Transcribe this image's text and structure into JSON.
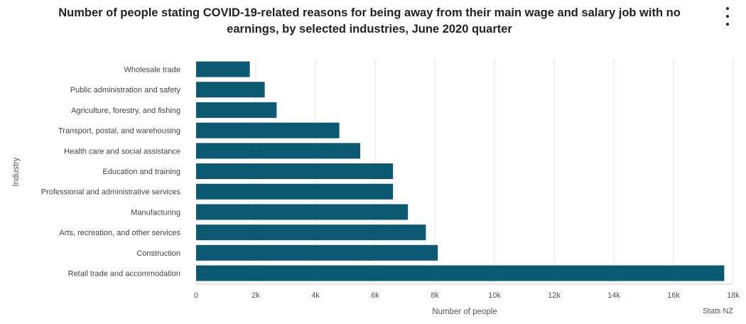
{
  "chart_data": {
    "type": "bar",
    "orientation": "horizontal",
    "title_lines": [
      "Number of people stating COVID-19-related reasons for being away from their main wage and salary job with no",
      "earnings, by selected industries, June 2020 quarter"
    ],
    "categories": [
      "Wholesale trade",
      "Public administration and safety",
      "Agriculture, forestry, and fishing",
      "Transport, postal, and warehousing",
      "Health care and social assistance",
      "Education and training",
      "Professional and administrative services",
      "Manufacturing",
      "Arts, recreation, and other services",
      "Construction",
      "Retail trade and accommodation"
    ],
    "values": [
      1800,
      2300,
      2700,
      4800,
      5500,
      6600,
      6600,
      7100,
      7700,
      8100,
      17700
    ],
    "xlabel": "Number of people",
    "ylabel": "Industry",
    "xlim": [
      0,
      18000
    ],
    "xticks": [
      0,
      2000,
      4000,
      6000,
      8000,
      10000,
      12000,
      14000,
      16000,
      18000
    ],
    "xtick_labels": [
      "0",
      "2k",
      "4k",
      "6k",
      "8k",
      "10k",
      "12k",
      "14k",
      "16k",
      "18k"
    ],
    "grid": "vertical",
    "bar_color": "#0b5a72",
    "credit": "Stats NZ"
  }
}
